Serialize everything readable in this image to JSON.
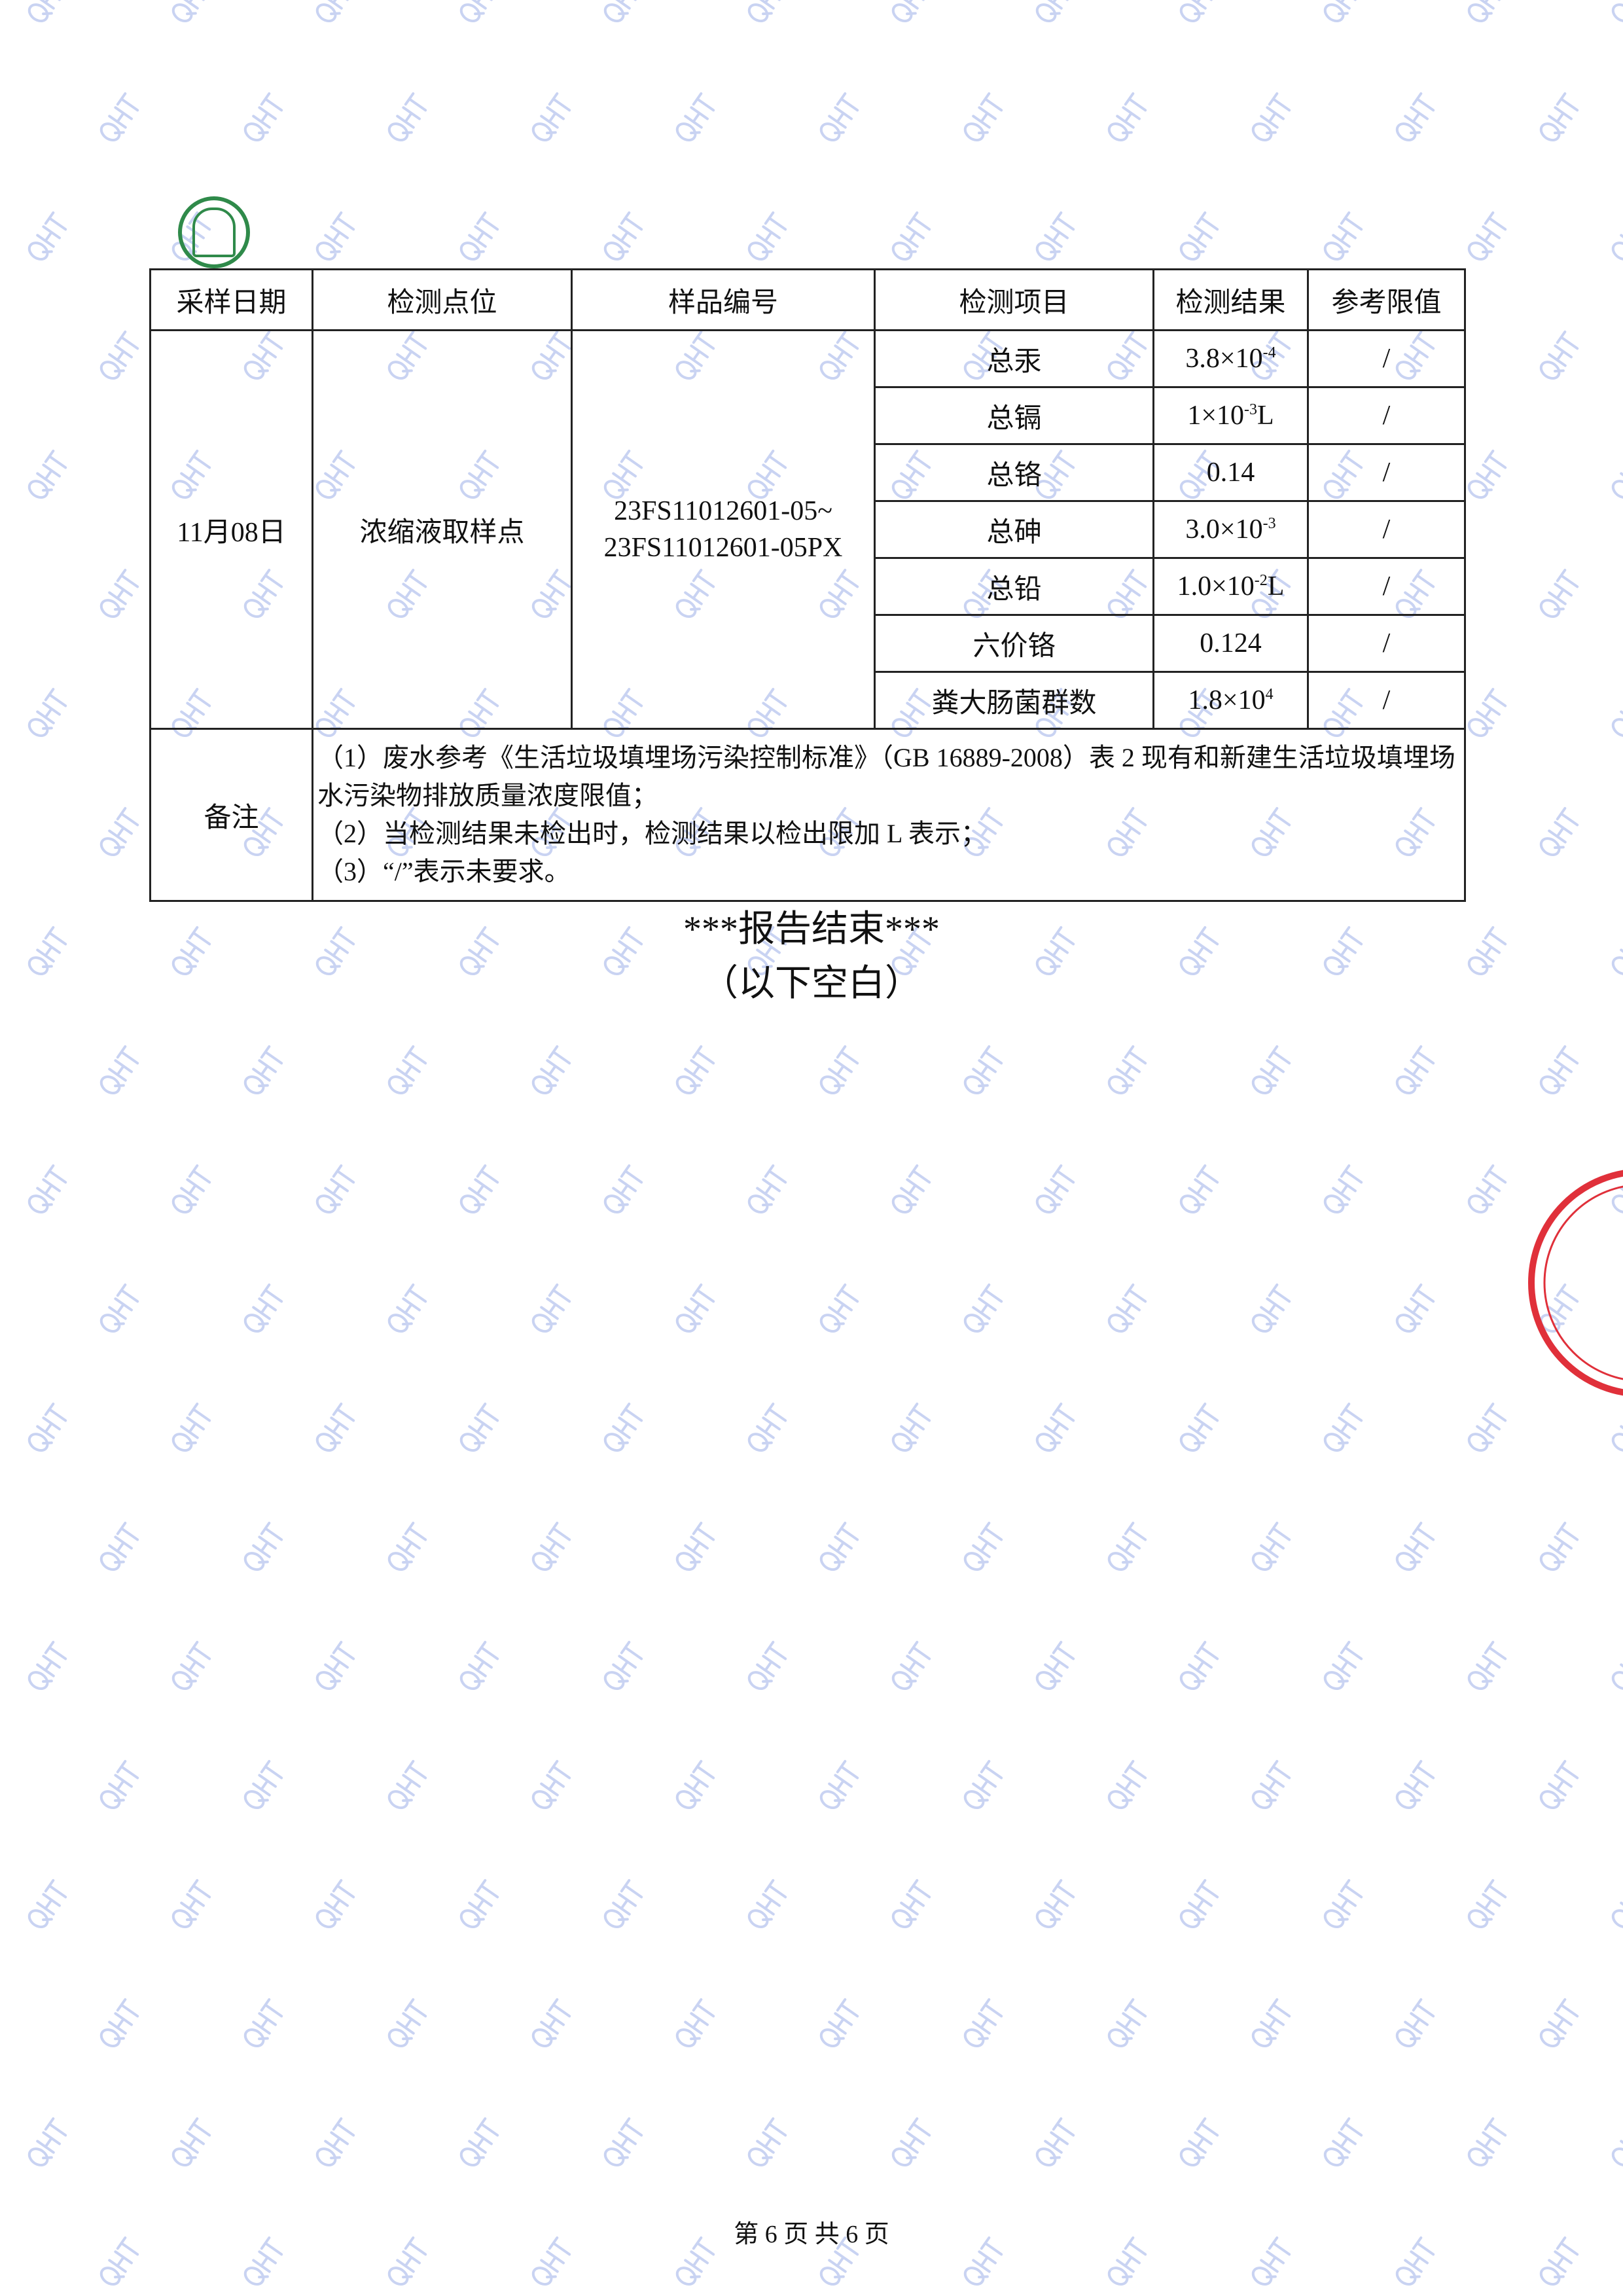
{
  "watermark": "QHT",
  "colors": {
    "watermark": "#c9d3f2",
    "stamp": "#e0303a",
    "logo": "#2f8a4a",
    "border": "#222222"
  },
  "table": {
    "headers": [
      "采样日期",
      "检测点位",
      "样品编号",
      "检测项目",
      "检测结果",
      "参考限值"
    ],
    "sampling_date": "11月08日",
    "location": "浓缩液取样点",
    "sample_id_line1": "23FS11012601-05~",
    "sample_id_line2": "23FS11012601-05PX",
    "rows": [
      {
        "item": "总汞",
        "base": "3.8×10",
        "sup": "-4",
        "suffix": "",
        "limit": "/"
      },
      {
        "item": "总镉",
        "base": "1×10",
        "sup": "-3",
        "suffix": "L",
        "limit": "/"
      },
      {
        "item": "总铬",
        "base": "0.14",
        "sup": "",
        "suffix": "",
        "limit": "/"
      },
      {
        "item": "总砷",
        "base": "3.0×10",
        "sup": "-3",
        "suffix": "",
        "limit": "/"
      },
      {
        "item": "总铅",
        "base": "1.0×10",
        "sup": "-2",
        "suffix": "L",
        "limit": "/"
      },
      {
        "item": "六价铬",
        "base": "0.124",
        "sup": "",
        "suffix": "",
        "limit": "/"
      },
      {
        "item": "粪大肠菌群数",
        "base": "1.8×10",
        "sup": "4",
        "suffix": "",
        "limit": "/"
      }
    ],
    "notes_label": "备注",
    "notes": [
      "（1）废水参考《生活垃圾填埋场污染控制标准》（GB 16889-2008）表 2 现有和新建生活垃圾填埋场水污染物排放质量浓度限值；",
      "（2）当检测结果未检出时，检测结果以检出限加 L 表示；",
      "（3）“/”表示未要求。"
    ]
  },
  "end_text": "***报告结束***",
  "blank_text": "（以下空白）",
  "footer": "第 6 页 共 6 页"
}
